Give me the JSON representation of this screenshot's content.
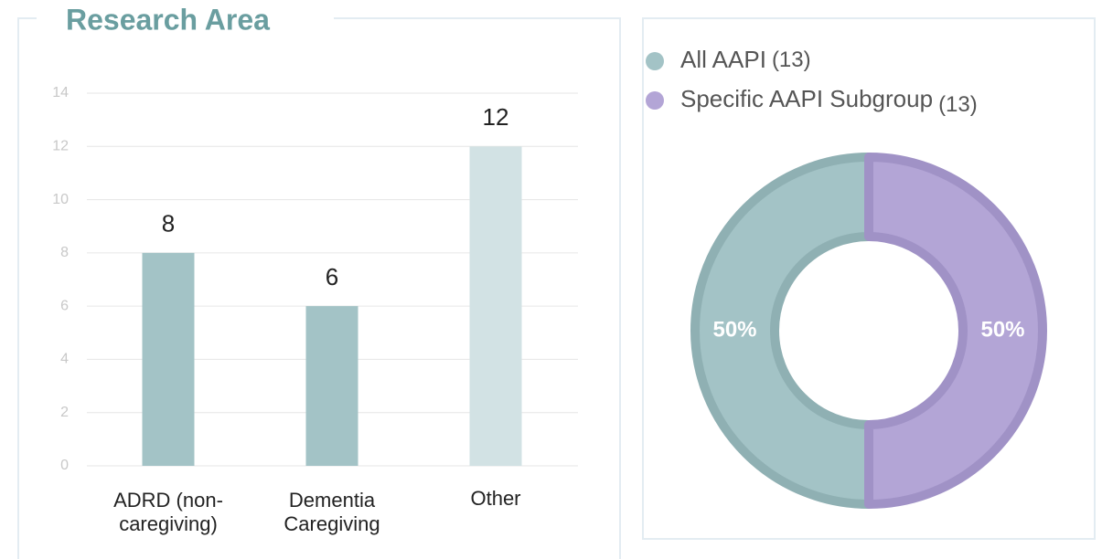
{
  "chart_data": [
    {
      "type": "bar",
      "title": "Research Area",
      "categories": [
        "ADRD (non-caregiving)",
        "Dementia Caregiving",
        "Other"
      ],
      "values": [
        8,
        6,
        12
      ],
      "colors": [
        "#a3c3c6",
        "#a3c3c6",
        "#d2e2e4"
      ],
      "ylim": [
        0,
        14
      ],
      "yticks": [
        0,
        2,
        4,
        6,
        8,
        10,
        12,
        14
      ],
      "grid": true
    },
    {
      "type": "pie",
      "donut": true,
      "categories": [
        "All AAPI",
        "Specific AAPI Subgroup"
      ],
      "counts": [
        13,
        13
      ],
      "count_labels": [
        "(13)",
        "(13)"
      ],
      "values": [
        50,
        50
      ],
      "value_labels": [
        "50%",
        "50%"
      ],
      "colors": [
        "#a3c3c6",
        "#b3a5d6"
      ],
      "edge_colors": [
        "#8fb0b3",
        "#a092c6"
      ],
      "legend": "top-left"
    }
  ]
}
